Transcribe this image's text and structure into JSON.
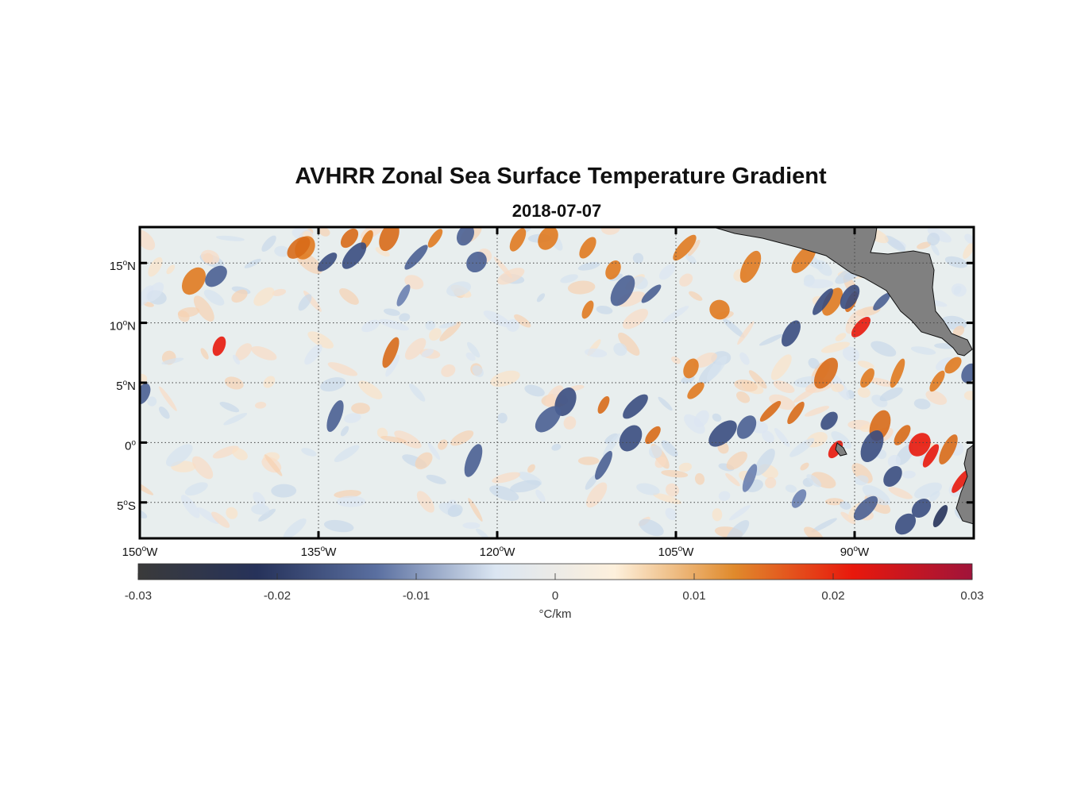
{
  "title": "AVHRR Zonal Sea Surface Temperature Gradient",
  "date": "2018-07-07",
  "colors": {
    "land": "#808080",
    "frame": "#000000",
    "grid": "#444444"
  },
  "map": {
    "lon_ticks": [
      {
        "value": -150,
        "deg": "150",
        "hemi": "W"
      },
      {
        "value": -135,
        "deg": "135",
        "hemi": "W"
      },
      {
        "value": -120,
        "deg": "120",
        "hemi": "W"
      },
      {
        "value": -105,
        "deg": "105",
        "hemi": "W"
      },
      {
        "value": -90,
        "deg": "90",
        "hemi": "W"
      }
    ],
    "lat_ticks": [
      {
        "value": 15,
        "deg": "15",
        "hemi": "N"
      },
      {
        "value": 10,
        "deg": "10",
        "hemi": "N"
      },
      {
        "value": 5,
        "deg": "5",
        "hemi": "N"
      },
      {
        "value": 0,
        "deg": "0",
        "hemi": ""
      },
      {
        "value": -5,
        "deg": "5",
        "hemi": "S"
      }
    ],
    "lon_range": [
      -150,
      -80
    ],
    "lat_range": [
      -8,
      18
    ],
    "grid": "dotted"
  },
  "colorbar": {
    "range": [
      -0.03,
      0.03
    ],
    "ticks": [
      "-0.03",
      "-0.02",
      "-0.01",
      "0",
      "0.01",
      "0.02",
      "0.03"
    ],
    "unit": "°C/km",
    "stops": [
      "#3a3a3a",
      "#26325a",
      "#5a6fa0",
      "#dbe6f2",
      "#fdf0dc",
      "#e08a2c",
      "#e8180c",
      "#a0143a"
    ]
  }
}
